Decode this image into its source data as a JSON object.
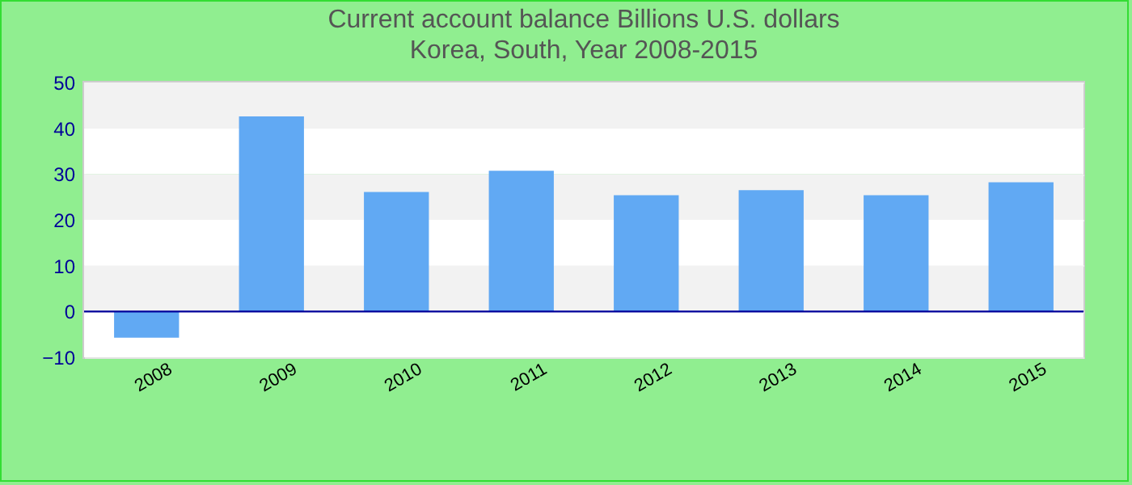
{
  "chart_data": {
    "type": "bar",
    "title": "Current account balance Billions U.S. dollars",
    "subtitle": "Korea, South, Year 2008-2015",
    "categories": [
      "2008",
      "2009",
      "2010",
      "2011",
      "2012",
      "2013",
      "2014",
      "2015"
    ],
    "values": [
      -5.7,
      42.6,
      26.1,
      30.7,
      25.4,
      26.5,
      25.4,
      28.2
    ],
    "color": "#61a9f3",
    "ylim": [
      -10,
      50
    ],
    "yticks": [
      -10,
      0,
      10,
      20,
      30,
      40,
      50
    ],
    "grid": "y",
    "ref_lines": [
      {
        "axis": "y",
        "value": 0,
        "color": "#000099"
      }
    ]
  }
}
